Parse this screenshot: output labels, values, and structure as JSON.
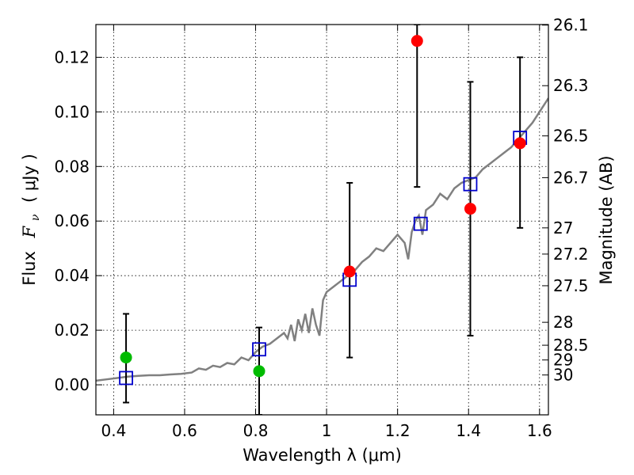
{
  "chart_data": {
    "type": "scatter",
    "xlabel": "Wavelength  λ (μm)",
    "ylabel": "Flux  F_ν  ( μJy )",
    "ylabel_parts": {
      "flux": "Flux",
      "symbol_main": "F",
      "symbol_sub": "ν",
      "unit": "( μJy )"
    },
    "y2label": "Magnitude (AB)",
    "xlim": [
      0.35,
      1.625
    ],
    "ylim": [
      -0.011,
      0.132
    ],
    "grid": true,
    "x_ticks": [
      0.4,
      0.6,
      0.8,
      1.0,
      1.2,
      1.4,
      1.6
    ],
    "x_tick_labels": [
      "0.4",
      "0.6",
      "0.8",
      "1",
      "1.2",
      "1.4",
      "1.6"
    ],
    "y_ticks": [
      0.0,
      0.02,
      0.04,
      0.06,
      0.08,
      0.1,
      0.12
    ],
    "y_tick_labels": [
      "0.00",
      "0.02",
      "0.04",
      "0.06",
      "0.08",
      "0.10",
      "0.12"
    ],
    "y2_ticks": [
      {
        "label": "26.1",
        "flux": 0.1318
      },
      {
        "label": "26.3",
        "flux": 0.1096
      },
      {
        "label": "26.5",
        "flux": 0.0912
      },
      {
        "label": "26.7",
        "flux": 0.0759
      },
      {
        "label": "27",
        "flux": 0.0575
      },
      {
        "label": "27.2",
        "flux": 0.0479
      },
      {
        "label": "27.5",
        "flux": 0.0363
      },
      {
        "label": "28",
        "flux": 0.0229
      },
      {
        "label": "28.5",
        "flux": 0.0145
      },
      {
        "label": "29",
        "flux": 0.0091
      },
      {
        "label": "30",
        "flux": 0.0036
      }
    ],
    "colors": {
      "model": "#808080",
      "detection": "#ff0000",
      "nondetection": "#00bb00",
      "model_band": "#0000cc",
      "errorbar": "#000000"
    },
    "series": [
      {
        "style": "line",
        "x": [
          0.35,
          0.38,
          0.41,
          0.44,
          0.47,
          0.5,
          0.53,
          0.56,
          0.59,
          0.62,
          0.64,
          0.66,
          0.68,
          0.7,
          0.72,
          0.74,
          0.76,
          0.78,
          0.8,
          0.82,
          0.84,
          0.86,
          0.88,
          0.89,
          0.9,
          0.91,
          0.92,
          0.93,
          0.94,
          0.95,
          0.96,
          0.97,
          0.98,
          0.99,
          1.0,
          1.02,
          1.04,
          1.06,
          1.08,
          1.1,
          1.12,
          1.14,
          1.16,
          1.18,
          1.2,
          1.22,
          1.23,
          1.24,
          1.25,
          1.26,
          1.27,
          1.28,
          1.3,
          1.32,
          1.34,
          1.36,
          1.38,
          1.4,
          1.42,
          1.44,
          1.46,
          1.48,
          1.5,
          1.52,
          1.54,
          1.56,
          1.58,
          1.6,
          1.625
        ],
        "y": [
          0.0015,
          0.002,
          0.0025,
          0.003,
          0.0033,
          0.0035,
          0.0035,
          0.0038,
          0.004,
          0.0045,
          0.006,
          0.0055,
          0.007,
          0.0065,
          0.008,
          0.0075,
          0.01,
          0.009,
          0.012,
          0.014,
          0.015,
          0.017,
          0.019,
          0.017,
          0.022,
          0.016,
          0.024,
          0.02,
          0.026,
          0.019,
          0.028,
          0.022,
          0.018,
          0.031,
          0.034,
          0.036,
          0.038,
          0.04,
          0.042,
          0.045,
          0.047,
          0.05,
          0.049,
          0.052,
          0.055,
          0.052,
          0.046,
          0.056,
          0.06,
          0.062,
          0.055,
          0.064,
          0.066,
          0.07,
          0.068,
          0.072,
          0.074,
          0.075,
          0.076,
          0.079,
          0.081,
          0.083,
          0.085,
          0.087,
          0.09,
          0.093,
          0.096,
          0.1,
          0.105
        ]
      },
      {
        "style": "open-square",
        "x": [
          0.435,
          0.81,
          1.065,
          1.265,
          1.405,
          1.545
        ],
        "y": [
          0.0025,
          0.013,
          0.0385,
          0.059,
          0.0735,
          0.0905
        ]
      },
      {
        "style": "filled-circle-red",
        "x": [
          1.065,
          1.255,
          1.405,
          1.545
        ],
        "y": [
          0.0415,
          0.126,
          0.0645,
          0.0885
        ]
      },
      {
        "style": "filled-circle-green",
        "x": [
          0.435,
          0.81
        ],
        "y": [
          0.01,
          0.005
        ]
      },
      {
        "style": "errorbar",
        "x": [
          0.435,
          0.81,
          1.065,
          1.255,
          1.405,
          1.545
        ],
        "y_low": [
          -0.0065,
          -0.011,
          0.01,
          0.0725,
          0.018,
          0.0575
        ],
        "y_high": [
          0.026,
          0.021,
          0.074,
          0.132,
          0.111,
          0.12
        ]
      }
    ]
  }
}
